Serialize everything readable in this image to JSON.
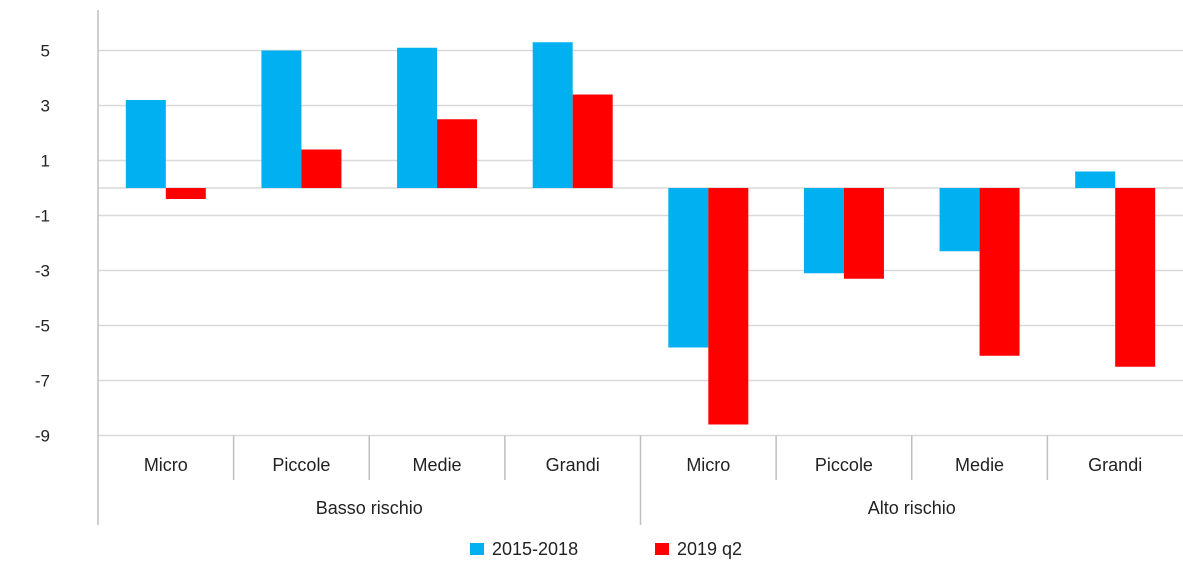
{
  "chart_data": {
    "type": "bar",
    "groups": [
      {
        "name": "Basso rischio",
        "categories": [
          "Micro",
          "Piccole",
          "Medie",
          "Grandi"
        ]
      },
      {
        "name": "Alto rischio",
        "categories": [
          "Micro",
          "Piccole",
          "Medie",
          "Grandi"
        ]
      }
    ],
    "categories": [
      "Micro",
      "Piccole",
      "Medie",
      "Grandi",
      "Micro",
      "Piccole",
      "Medie",
      "Grandi"
    ],
    "series": [
      {
        "name": "2015-2018",
        "color": "#00b0f0",
        "values": [
          3.2,
          5.0,
          5.1,
          5.3,
          -5.8,
          -3.1,
          -2.3,
          0.6
        ]
      },
      {
        "name": "2019 q2",
        "color": "#ff0000",
        "values": [
          -0.4,
          1.4,
          2.5,
          3.4,
          -8.6,
          -3.3,
          -6.1,
          -6.5
        ]
      }
    ],
    "yticks": [
      5,
      3,
      1,
      -1,
      -3,
      -5,
      -7,
      -9
    ],
    "ylim": [
      -9,
      6
    ],
    "grid": true,
    "legend_position": "bottom-center",
    "title": "",
    "xlabel": "",
    "ylabel": ""
  }
}
